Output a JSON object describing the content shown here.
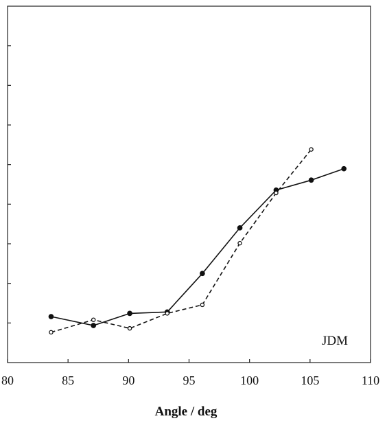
{
  "chart_data": {
    "type": "line",
    "title": "",
    "xlabel": "Angle / deg",
    "ylabel": "",
    "xlim": [
      80,
      110
    ],
    "ylim": [
      0,
      1
    ],
    "xticks": [
      80,
      85,
      90,
      95,
      100,
      105,
      110
    ],
    "x_tick_labels": [
      "80",
      "85",
      "90",
      "95",
      "100",
      "105",
      "110"
    ],
    "y_tick_count": 9,
    "grid": false,
    "legend": "none",
    "annotation": "JDM",
    "series": [
      {
        "style": "solid",
        "marker": "filled-circle",
        "color": "#111111",
        "x": [
          83.6,
          87.1,
          90.1,
          93.2,
          96.1,
          99.2,
          102.2,
          105.1,
          107.8
        ],
        "y": [
          0.129,
          0.104,
          0.138,
          0.142,
          0.25,
          0.378,
          0.484,
          0.512,
          0.544
        ]
      },
      {
        "style": "dashed",
        "marker": "open-circle",
        "color": "#111111",
        "x": [
          83.6,
          87.1,
          90.1,
          93.2,
          96.1,
          99.2,
          102.2,
          105.1
        ],
        "y": [
          0.085,
          0.12,
          0.096,
          0.138,
          0.162,
          0.335,
          0.476,
          0.598
        ]
      }
    ]
  }
}
